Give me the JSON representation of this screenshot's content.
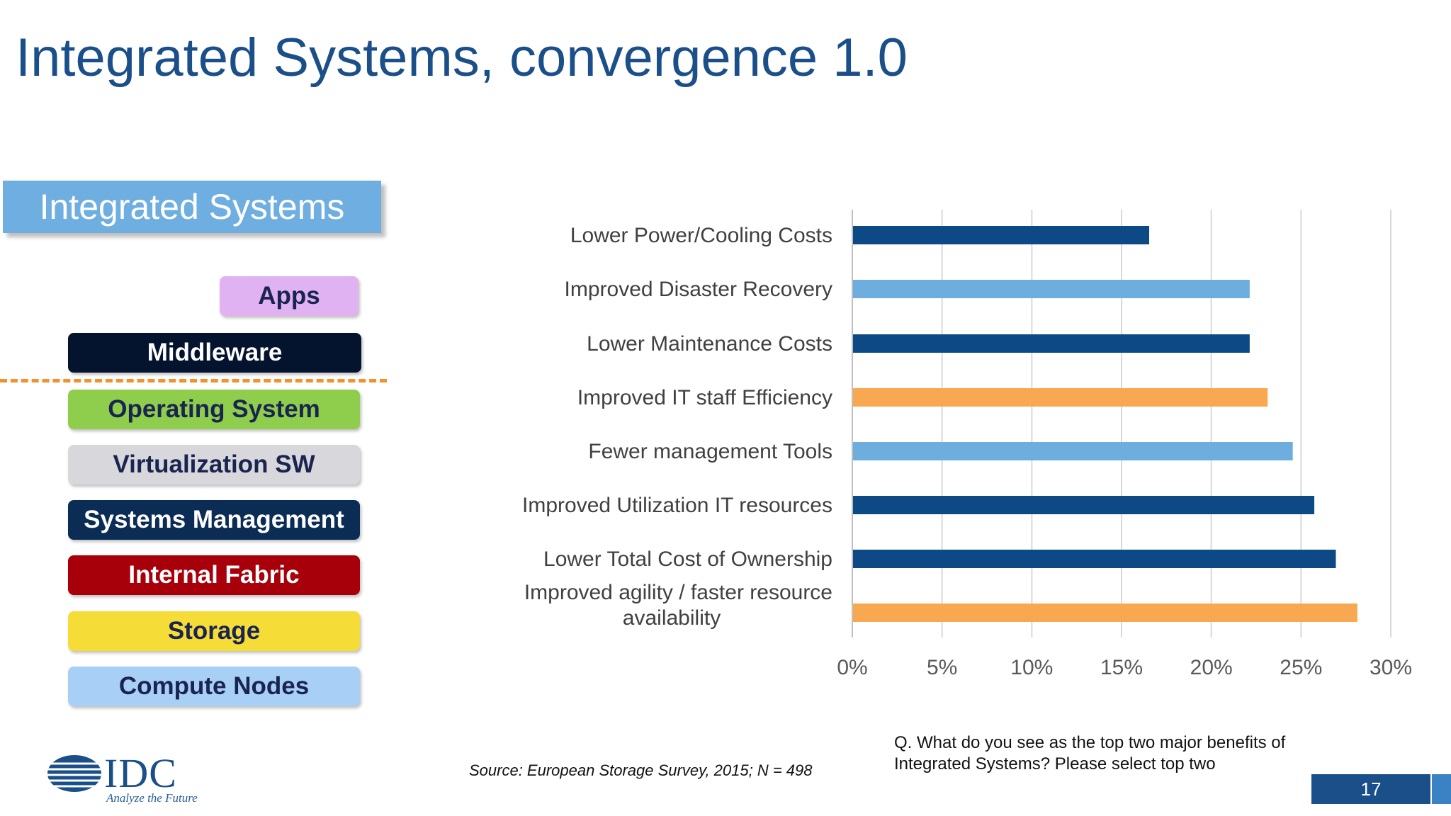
{
  "slide": {
    "title": "Integrated Systems, convergence 1.0",
    "section_label": "Integrated Systems",
    "source": "Source: European Storage Survey, 2015; N = 498",
    "question": "Q. What do you see as the top two major benefits of Integrated Systems? Please select top two",
    "page_number": "17"
  },
  "stack": {
    "layers": [
      {
        "label": "Apps",
        "bg": "#e0b2f2",
        "fg": "#1a2450"
      },
      {
        "label": "Middleware",
        "bg": "#04132e",
        "fg": "#ffffff"
      },
      {
        "label": "Operating System",
        "bg": "#8fcd4d",
        "fg": "#1a2450"
      },
      {
        "label": "Virtualization SW",
        "bg": "#d8d8dc",
        "fg": "#1a2450"
      },
      {
        "label": "Systems Management",
        "bg": "#0a2c55",
        "fg": "#ffffff"
      },
      {
        "label": "Internal Fabric",
        "bg": "#a8000a",
        "fg": "#ffffff"
      },
      {
        "label": "Storage",
        "bg": "#f6dc36",
        "fg": "#1a2450"
      },
      {
        "label": "Compute Nodes",
        "bg": "#a8d0f6",
        "fg": "#1a2450"
      }
    ],
    "divider_color": "#f0922e"
  },
  "logo": {
    "name": "IDC",
    "tagline": "Analyze the Future"
  },
  "chart_data": {
    "type": "bar",
    "orientation": "horizontal",
    "categories": [
      "Lower Power/Cooling Costs",
      "Improved Disaster Recovery",
      "Lower Maintenance Costs",
      "Improved IT staff Efficiency",
      "Fewer management Tools",
      "Improved Utilization IT resources",
      "Lower Total Cost of Ownership",
      "Improved agility / faster resource availability"
    ],
    "values": [
      16.5,
      22.1,
      22.1,
      23.1,
      24.5,
      25.7,
      26.9,
      28.1
    ],
    "bar_colors": [
      "#0d4a85",
      "#6daedf",
      "#0d4a85",
      "#f7a851",
      "#6daedf",
      "#0d4a85",
      "#0d4a85",
      "#f7a851"
    ],
    "x_ticks": [
      "0%",
      "5%",
      "10%",
      "15%",
      "20%",
      "25%",
      "30%"
    ],
    "xlim": [
      0,
      30
    ],
    "grid": true,
    "title": "",
    "xlabel": "",
    "ylabel": ""
  }
}
